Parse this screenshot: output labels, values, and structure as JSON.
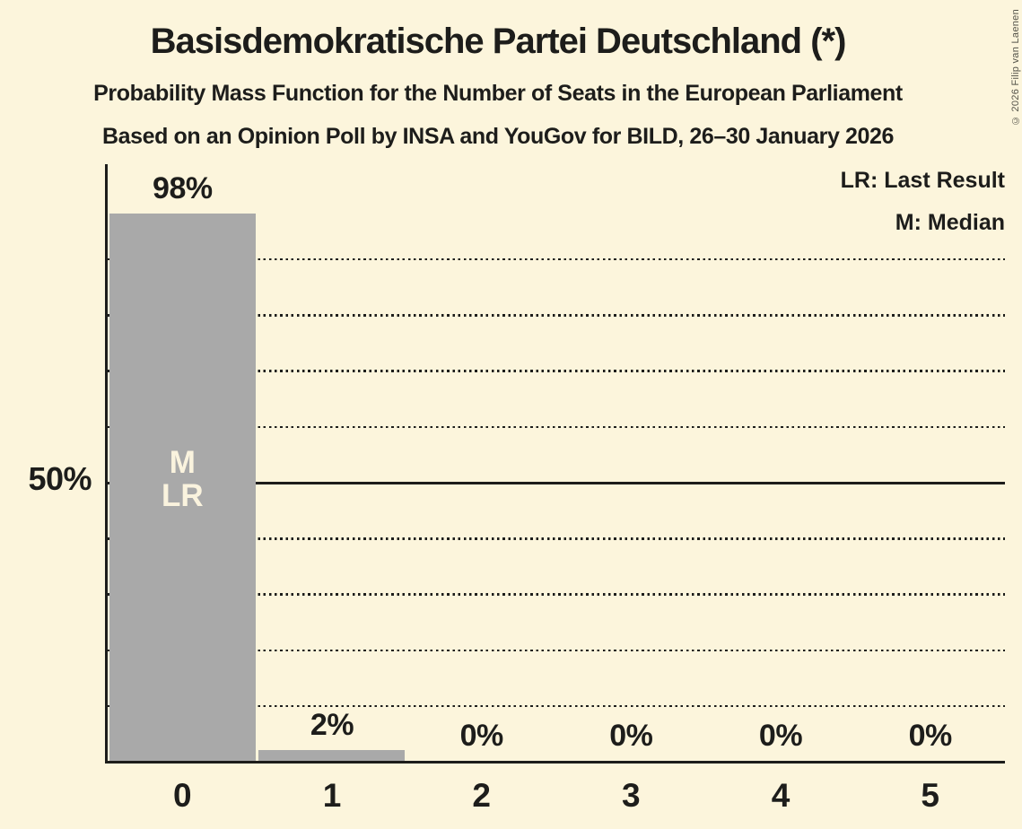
{
  "meta": {
    "copyright": "© 2026 Filip van Laenen"
  },
  "header": {
    "title": "Basisdemokratische Partei Deutschland (*)",
    "subtitle1": "Probability Mass Function for the Number of Seats in the European Parliament",
    "subtitle2": "Based on an Opinion Poll by INSA and YouGov for BILD, 26–30 January 2026"
  },
  "legend": {
    "lr_label": "LR: Last Result",
    "m_label": "M: Median"
  },
  "colors": {
    "background": "#FCF5DC",
    "bar": "#A9A9A9",
    "ink": "#1D1D1B",
    "bar_annotation_text": "#FAF3DE",
    "copyright_text": "#55544A"
  },
  "chart_data": {
    "type": "bar",
    "title": "Probability Mass Function for the Number of Seats in the European Parliament",
    "categories": [
      "0",
      "1",
      "2",
      "3",
      "4",
      "5"
    ],
    "values": [
      98,
      2,
      0,
      0,
      0,
      0
    ],
    "value_labels": [
      "98%",
      "2%",
      "0%",
      "0%",
      "0%",
      "0%"
    ],
    "xlabel": "",
    "ylabel": "",
    "y_tick_label": "50%",
    "ylim": [
      0,
      107
    ],
    "gridlines": {
      "dotted_pct": [
        10,
        20,
        30,
        40,
        60,
        70,
        80,
        90
      ],
      "solid_pct": [
        50
      ]
    },
    "legend_position": "top-right",
    "annotation": {
      "category": "0",
      "lines": [
        "M",
        "LR"
      ]
    }
  }
}
